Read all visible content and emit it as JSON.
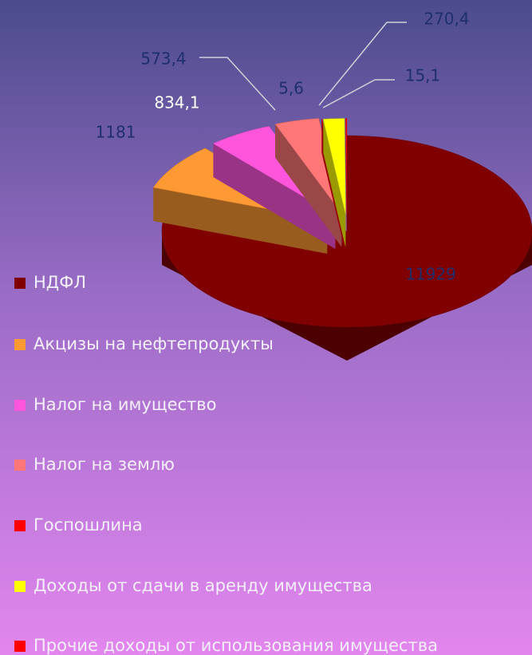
{
  "chart_data": {
    "type": "pie",
    "categories": [
      "НДФЛ",
      "Акцизы на нефтепродукты",
      "Налог на имущество",
      "Налог на землю",
      "Госпошлина",
      "Доходы от сдачи в аренду имущества",
      "Прочие доходы от использования имущества"
    ],
    "values": [
      11929,
      1181,
      834.1,
      573.4,
      5.6,
      270.4,
      15.1
    ],
    "value_labels": [
      "11929",
      "1181",
      "834,1",
      "573,4",
      "5,6",
      "270,4",
      "15,1"
    ],
    "colors": [
      "#800000",
      "#ff9933",
      "#ff55dd",
      "#ff7777",
      "#ff0000",
      "#ffff00",
      "#ff0000"
    ],
    "legend": "left",
    "three_d": true
  }
}
